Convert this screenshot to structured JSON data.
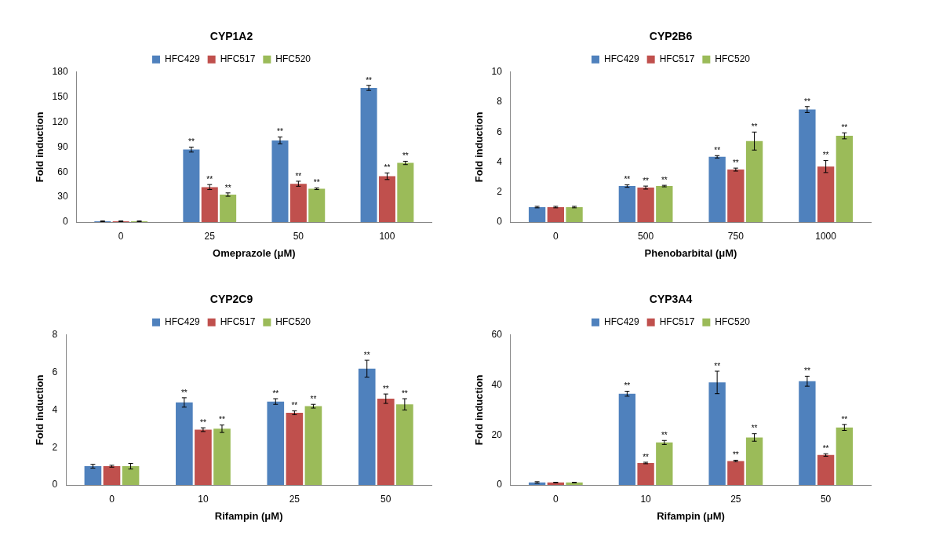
{
  "chart_data": [
    {
      "type": "bar",
      "title": "CYP1A2",
      "x_label": "Omeprazole (μM)",
      "y_label": "Fold induction",
      "categories": [
        "0",
        "25",
        "50",
        "100"
      ],
      "series": [
        {
          "name": "HFC429",
          "color": "#4f81bd",
          "values": [
            1,
            87,
            98,
            161
          ],
          "errors": [
            0.5,
            3,
            4,
            3
          ],
          "significance": [
            null,
            "**",
            "**",
            "**"
          ]
        },
        {
          "name": "HFC517",
          "color": "#c0504d",
          "values": [
            1,
            42,
            46,
            55
          ],
          "errors": [
            0.5,
            3,
            3,
            4
          ],
          "significance": [
            null,
            "**",
            "**",
            "**"
          ]
        },
        {
          "name": "HFC520",
          "color": "#9bbb59",
          "values": [
            1,
            33,
            40,
            71
          ],
          "errors": [
            0.5,
            2,
            1,
            2
          ],
          "significance": [
            null,
            "**",
            "**",
            "**"
          ]
        }
      ],
      "ylim": [
        0,
        180
      ],
      "yticks": [
        0,
        30,
        60,
        90,
        120,
        150,
        180
      ],
      "grid": false,
      "legend": "top"
    },
    {
      "type": "bar",
      "title": "CYP2B6",
      "x_label": "Phenobarbital (μM)",
      "y_label": "Fold induction",
      "categories": [
        "0",
        "500",
        "750",
        "1000"
      ],
      "series": [
        {
          "name": "HFC429",
          "color": "#4f81bd",
          "values": [
            1,
            2.4,
            4.35,
            7.5
          ],
          "errors": [
            0.05,
            0.08,
            0.08,
            0.2
          ],
          "significance": [
            null,
            "**",
            "**",
            "**"
          ]
        },
        {
          "name": "HFC517",
          "color": "#c0504d",
          "values": [
            1,
            2.3,
            3.5,
            3.7
          ],
          "errors": [
            0.05,
            0.1,
            0.1,
            0.4
          ],
          "significance": [
            null,
            "**",
            "**",
            "**"
          ]
        },
        {
          "name": "HFC520",
          "color": "#9bbb59",
          "values": [
            1,
            2.4,
            5.4,
            5.75
          ],
          "errors": [
            0.05,
            0.05,
            0.6,
            0.2
          ],
          "significance": [
            null,
            "**",
            "**",
            "**"
          ]
        }
      ],
      "ylim": [
        0,
        10
      ],
      "yticks": [
        0,
        2,
        4,
        6,
        8,
        10
      ],
      "grid": false,
      "legend": "top"
    },
    {
      "type": "bar",
      "title": "CYP2C9",
      "x_label": "Rifampin (μM)",
      "y_label": "Fold induction",
      "categories": [
        "0",
        "10",
        "25",
        "50"
      ],
      "series": [
        {
          "name": "HFC429",
          "color": "#4f81bd",
          "values": [
            1,
            4.4,
            4.45,
            6.2
          ],
          "errors": [
            0.1,
            0.25,
            0.15,
            0.45
          ],
          "significance": [
            null,
            "**",
            "**",
            "**"
          ]
        },
        {
          "name": "HFC517",
          "color": "#c0504d",
          "values": [
            1,
            2.95,
            3.85,
            4.6
          ],
          "errors": [
            0.05,
            0.1,
            0.1,
            0.25
          ],
          "significance": [
            null,
            "**",
            "**",
            "**"
          ]
        },
        {
          "name": "HFC520",
          "color": "#9bbb59",
          "values": [
            1,
            3.0,
            4.2,
            4.3
          ],
          "errors": [
            0.15,
            0.2,
            0.1,
            0.3
          ],
          "significance": [
            null,
            "**",
            "**",
            "**"
          ]
        }
      ],
      "ylim": [
        0,
        8
      ],
      "yticks": [
        0,
        2,
        4,
        6,
        8
      ],
      "grid": false,
      "legend": "top"
    },
    {
      "type": "bar",
      "title": "CYP3A4",
      "x_label": "Rifampin (μM)",
      "y_label": "Fold induction",
      "categories": [
        "0",
        "10",
        "25",
        "50"
      ],
      "series": [
        {
          "name": "HFC429",
          "color": "#4f81bd",
          "values": [
            1,
            36.5,
            41,
            41.5
          ],
          "errors": [
            0.3,
            1,
            4.5,
            2
          ],
          "significance": [
            null,
            "**",
            "**",
            "**"
          ]
        },
        {
          "name": "HFC517",
          "color": "#c0504d",
          "values": [
            1,
            8.8,
            9.6,
            12
          ],
          "errors": [
            0.1,
            0.3,
            0.3,
            0.5
          ],
          "significance": [
            null,
            "**",
            "**",
            "**"
          ]
        },
        {
          "name": "HFC520",
          "color": "#9bbb59",
          "values": [
            1,
            17,
            19,
            23
          ],
          "errors": [
            0.1,
            0.8,
            1.5,
            1.2
          ],
          "significance": [
            null,
            "**",
            "**",
            "**"
          ]
        }
      ],
      "ylim": [
        0,
        60
      ],
      "yticks": [
        0,
        20,
        40,
        60
      ],
      "grid": false,
      "legend": "top"
    }
  ]
}
